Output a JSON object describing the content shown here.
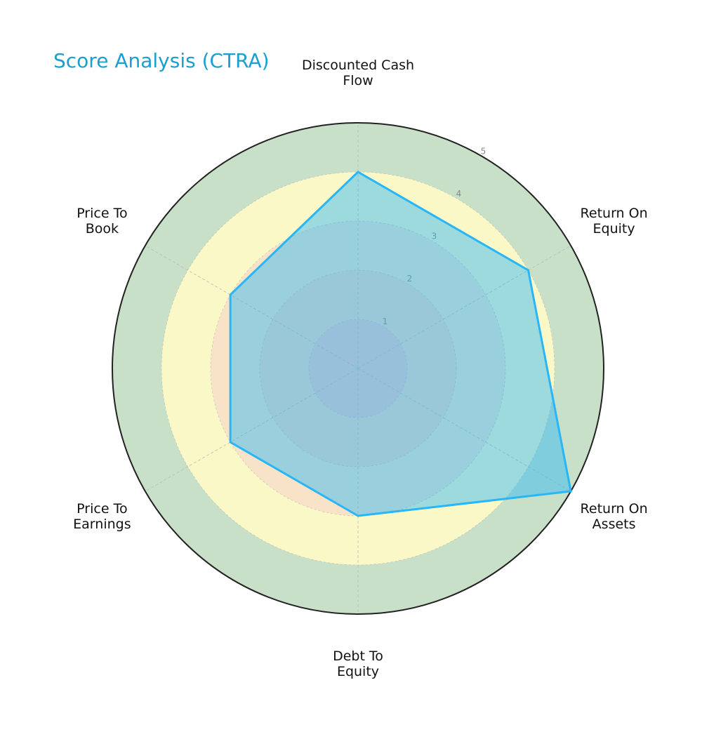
{
  "chart_data": {
    "type": "radar",
    "title": "Score Analysis (CTRA)",
    "categories": [
      "Discounted Cash\nFlow",
      "Return On\nEquity",
      "Return On\nAssets",
      "Debt To\nEquity",
      "Price To\nEarnings",
      "Price To\nBook"
    ],
    "series": [
      {
        "name": "CTRA",
        "color": "#29b6f6",
        "values": [
          4,
          4,
          5,
          3,
          3,
          3
        ]
      }
    ],
    "rlim": [
      0,
      5
    ],
    "rticks": [
      1,
      2,
      3,
      4,
      5
    ],
    "band_colors": [
      "#f6c9c4",
      "#f8d7c0",
      "#f8e3c8",
      "#fbf8c8",
      "#c8e0c8"
    ],
    "grid": true
  }
}
